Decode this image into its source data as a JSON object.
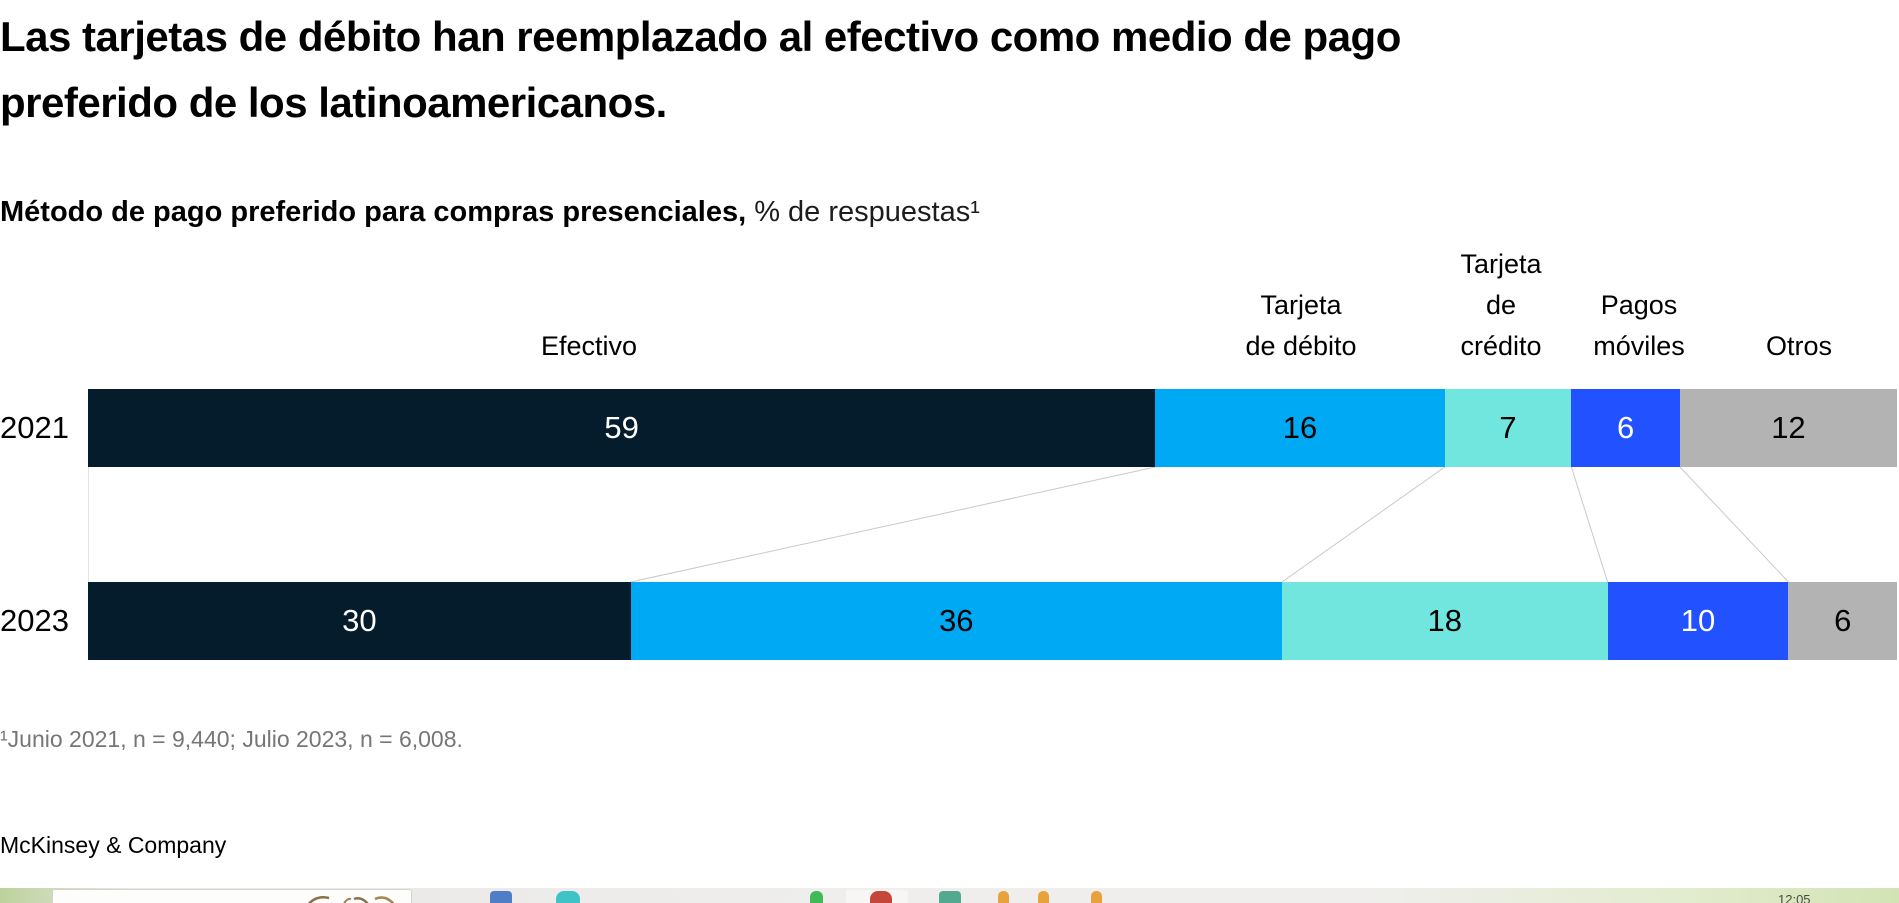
{
  "title": "Las tarjetas de débito han reemplazado al efectivo como medio de pago\npreferido de los latinoamericanos.",
  "subtitle": {
    "bold": "Método de pago preferido para compras presenciales,",
    "regular": " % de respuestas¹"
  },
  "chart_data": {
    "type": "bar",
    "subtype": "stacked-horizontal-100pct",
    "unit": "% de respuestas",
    "categories": [
      "Efectivo",
      "Tarjeta de débito",
      "Tarjeta de crédito",
      "Pagos móviles",
      "Otros"
    ],
    "category_display": [
      "Efectivo",
      "Tarjeta\nde débito",
      "Tarjeta\nde\ncrédito",
      "Pagos\nmóviles",
      "Otros"
    ],
    "rows": [
      {
        "label": "2021",
        "values": [
          59,
          16,
          7,
          6,
          12
        ]
      },
      {
        "label": "2023",
        "values": [
          30,
          36,
          18,
          10,
          6
        ]
      }
    ],
    "colors": [
      "#051c2c",
      "#00a9f4",
      "#70e6de",
      "#2251ff",
      "#b3b3b3"
    ],
    "value_text_colors": [
      "#ffffff",
      "#000000",
      "#000000",
      "#ffffff",
      "#000000"
    ],
    "connector_color": "#c9c9c9",
    "legend_position": "column-headers-above-first-bar",
    "grid": false
  },
  "footnote": "¹Junio 2021, n = 9,440; Julio 2023, n = 6,008.",
  "brand": "McKinsey & Company",
  "taskbar": {
    "clock": "12:05"
  }
}
